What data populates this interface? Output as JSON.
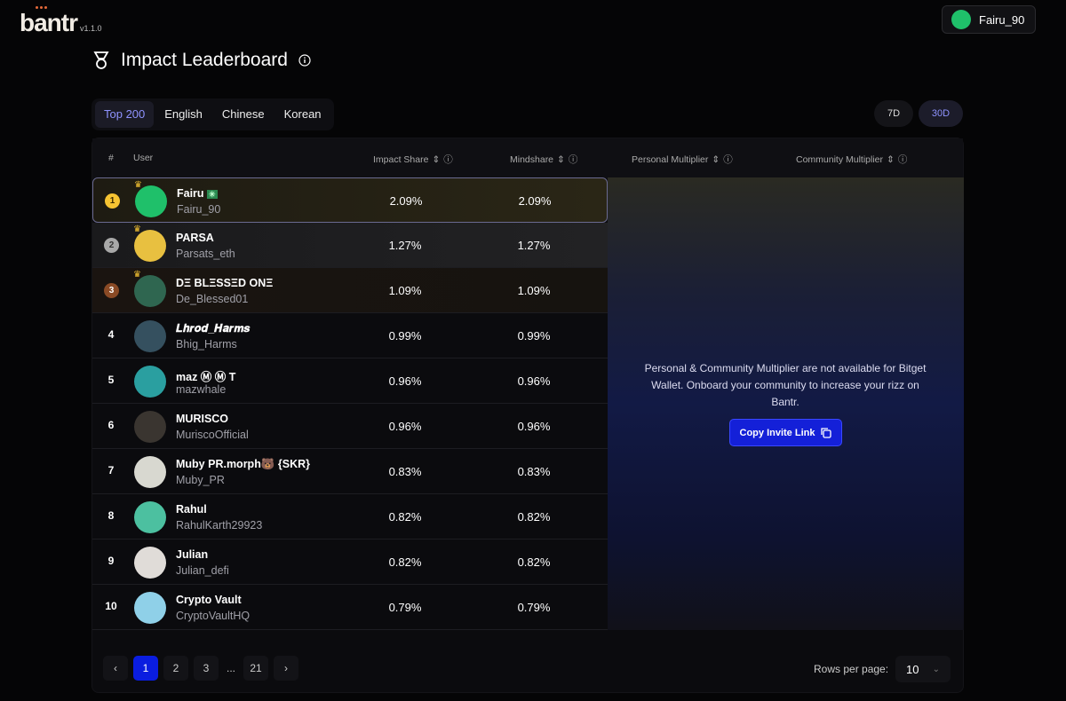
{
  "app": {
    "logo": "bantr",
    "version": "v1.1.0",
    "user": "Fairu_90"
  },
  "page": {
    "title": "Impact Leaderboard"
  },
  "tabs": [
    "Top 200",
    "English",
    "Chinese",
    "Korean"
  ],
  "periods": [
    "7D",
    "30D"
  ],
  "columns": {
    "rank": "#",
    "user": "User",
    "impact": "Impact Share",
    "mindshare": "Mindshare",
    "personal": "Personal Multiplier",
    "community": "Community Multiplier"
  },
  "rows": [
    {
      "rank": "1",
      "name": "Fairu",
      "badge": "✳",
      "handle": "Fairu_90",
      "impact": "2.09%",
      "mindshare": "2.09%",
      "avatar": "#1fc06a"
    },
    {
      "rank": "2",
      "name": "PARSA",
      "badge": "",
      "handle": "Parsats_eth",
      "impact": "1.27%",
      "mindshare": "1.27%",
      "avatar": "#e8c040"
    },
    {
      "rank": "3",
      "name": "DΞ BLΞSSΞD ONΞ",
      "badge": "",
      "handle": "De_Blessed01",
      "impact": "1.09%",
      "mindshare": "1.09%",
      "avatar": "#2f6650"
    },
    {
      "rank": "4",
      "name": "𝑳𝒉𝒓𝒐𝒅_𝑯𝒂𝒓𝒎𝒔",
      "badge": "",
      "handle": "Bhig_Harms",
      "impact": "0.99%",
      "mindshare": "0.99%",
      "avatar": "#35505f"
    },
    {
      "rank": "5",
      "name": "maz Ⓜ Ⓜ T",
      "badge": "",
      "handle": "mazwhale",
      "impact": "0.96%",
      "mindshare": "0.96%",
      "avatar": "#2a9fa0"
    },
    {
      "rank": "6",
      "name": "MURISCO",
      "badge": "",
      "handle": "MuriscoOfficial",
      "impact": "0.96%",
      "mindshare": "0.96%",
      "avatar": "#3a3530"
    },
    {
      "rank": "7",
      "name": "Muby PR.morph🐻 {SKR}",
      "badge": "",
      "handle": "Muby_PR",
      "impact": "0.83%",
      "mindshare": "0.83%",
      "avatar": "#d8d8d0"
    },
    {
      "rank": "8",
      "name": "Rahul",
      "badge": "",
      "handle": "RahulKarth29923",
      "impact": "0.82%",
      "mindshare": "0.82%",
      "avatar": "#4cc0a0"
    },
    {
      "rank": "9",
      "name": "Julian",
      "badge": "",
      "handle": "Julian_defi",
      "impact": "0.82%",
      "mindshare": "0.82%",
      "avatar": "#e0dcd8"
    },
    {
      "rank": "10",
      "name": "Crypto Vault",
      "badge": "",
      "handle": "CryptoVaultHQ",
      "impact": "0.79%",
      "mindshare": "0.79%",
      "avatar": "#8fd0e8"
    }
  ],
  "overlay": {
    "message": "Personal & Community Multiplier are not available for Bitget Wallet. Onboard your community to increase your rizz on Bantr.",
    "button": "Copy Invite Link"
  },
  "pagination": {
    "pages": [
      "1",
      "2",
      "3",
      "...",
      "21"
    ],
    "current": "1",
    "rows_label": "Rows per page:",
    "rows_value": "10"
  },
  "colors": {
    "accent": "#0a1de0",
    "gold": "#f5c332",
    "silver": "#a8a8a8",
    "bronze": "#8a4a25"
  }
}
